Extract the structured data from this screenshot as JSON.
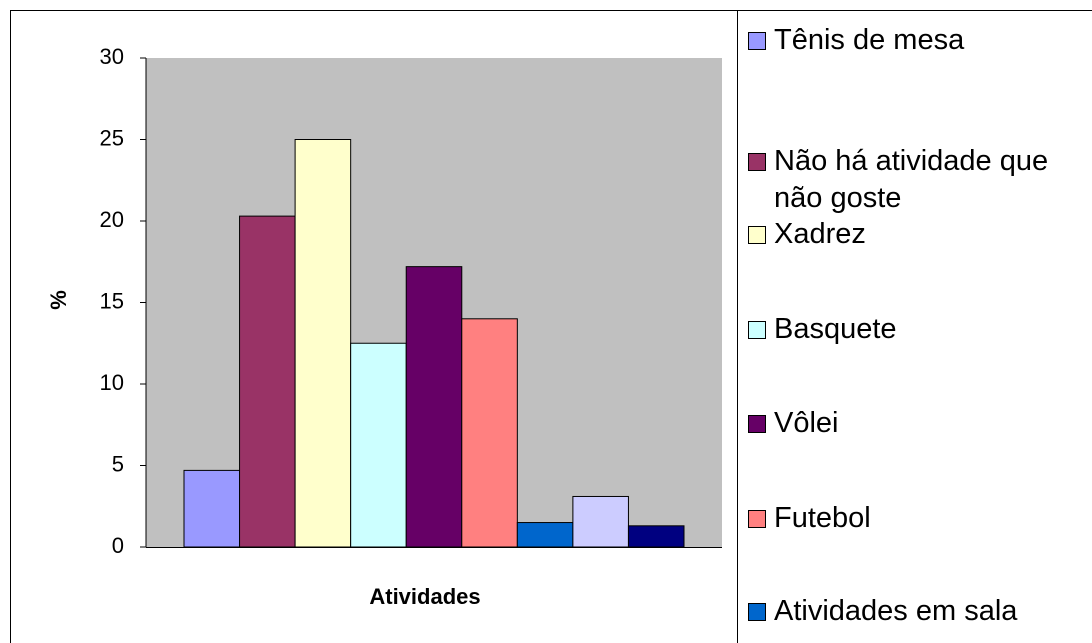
{
  "chart_data": {
    "type": "bar",
    "x_label": "Atividades",
    "y_label": "%",
    "categories": [
      null
    ],
    "series": [
      {
        "name": "Tênis de mesa",
        "color": "#9999ff",
        "values": [
          4.7
        ]
      },
      {
        "name": "Não há atividade que não goste",
        "color": "#993366",
        "values": [
          20.3
        ]
      },
      {
        "name": "Xadrez",
        "color": "#ffffcc",
        "values": [
          25.0
        ]
      },
      {
        "name": "Basquete",
        "color": "#ccffff",
        "values": [
          12.5
        ]
      },
      {
        "name": "Vôlei",
        "color": "#660066",
        "values": [
          17.2
        ]
      },
      {
        "name": "Futebol",
        "color": "#ff8080",
        "values": [
          14.0
        ]
      },
      {
        "name": "Atividades em sala",
        "color": "#0066cc",
        "values": [
          1.5
        ]
      },
      {
        "name": null,
        "color": "#ccccff",
        "values": [
          3.1
        ]
      },
      {
        "name": null,
        "color": "#000080",
        "values": [
          1.3
        ]
      }
    ],
    "ylim": [
      0,
      30
    ],
    "yticks": [
      0,
      5,
      10,
      15,
      20,
      25,
      30
    ],
    "plot_color": "#c0c0c0",
    "grid": false
  }
}
